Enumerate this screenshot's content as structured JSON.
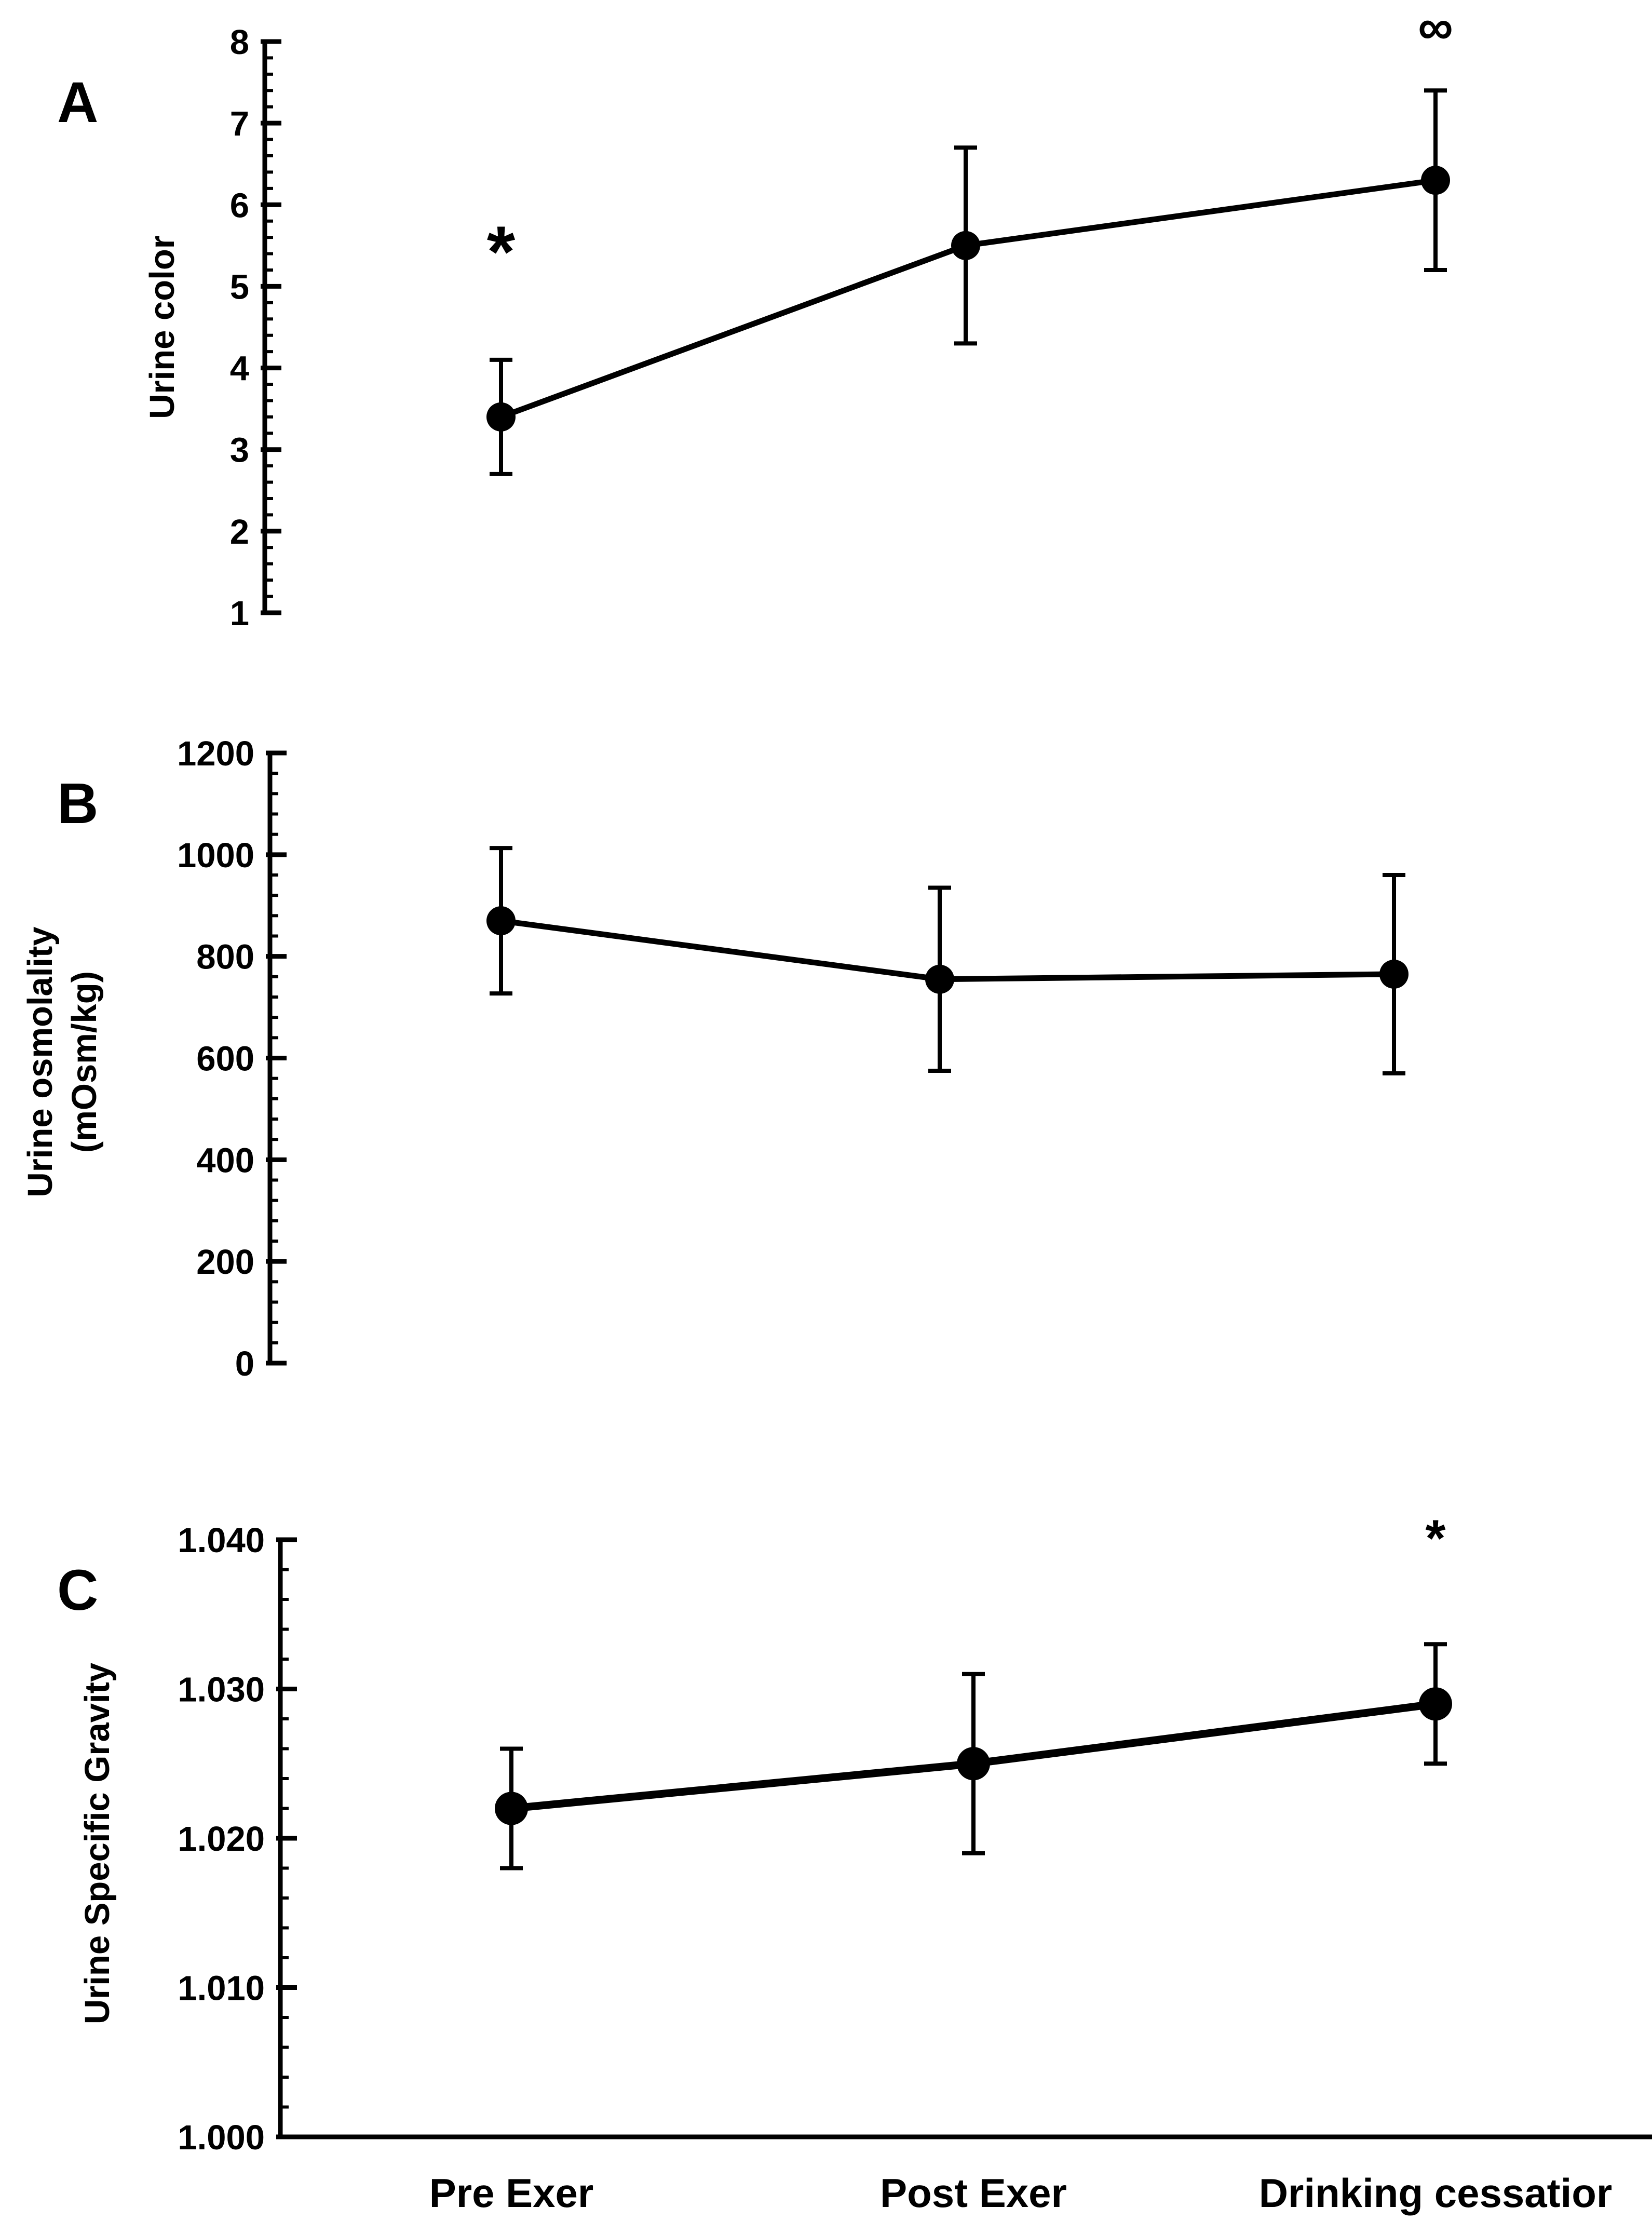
{
  "chart_data": [
    {
      "type": "line",
      "panel": "A",
      "ylabel": "Urine color",
      "ylim": [
        1,
        8
      ],
      "yticks": [
        "1",
        "2",
        "3",
        "4",
        "5",
        "6",
        "7",
        "8"
      ],
      "minor_ticks_per_major": 4,
      "categories": [
        "Pre Exer",
        "Post Exer",
        "Drinking cessatior"
      ],
      "values": [
        3.4,
        5.5,
        6.3
      ],
      "errors": [
        0.7,
        1.2,
        1.1
      ],
      "annotations": [
        {
          "category_index": 0,
          "text": "*",
          "position": "above-left"
        },
        {
          "category_index": 2,
          "text": "∞",
          "position": "above"
        }
      ]
    },
    {
      "type": "line",
      "panel": "B",
      "ylabel": "Urine osmolality",
      "ylabel2": "(mOsm/kg)",
      "ylim": [
        0,
        1200
      ],
      "yticks": [
        "0",
        "200",
        "400",
        "600",
        "800",
        "1000",
        "1200"
      ],
      "minor_ticks_per_major": 4,
      "categories": [
        "Pre Exer",
        "Post Exer",
        "Drinking cessatior"
      ],
      "values": [
        870,
        755,
        765
      ],
      "errors": [
        143,
        180,
        195
      ],
      "annotations": []
    },
    {
      "type": "line",
      "panel": "C",
      "ylabel": "Urine  Specific Gravity",
      "ylim": [
        1.0,
        1.04
      ],
      "yticks": [
        "1.000",
        "1.010",
        "1.020",
        "1.030",
        "1.040"
      ],
      "minor_ticks_per_major": 4,
      "categories": [
        "Pre Exer",
        "Post Exer",
        "Drinking cessatior"
      ],
      "values": [
        1.022,
        1.025,
        1.029
      ],
      "errors": [
        0.004,
        0.006,
        0.004
      ],
      "annotations": [
        {
          "category_index": 2,
          "text": "*",
          "position": "above"
        }
      ]
    }
  ]
}
